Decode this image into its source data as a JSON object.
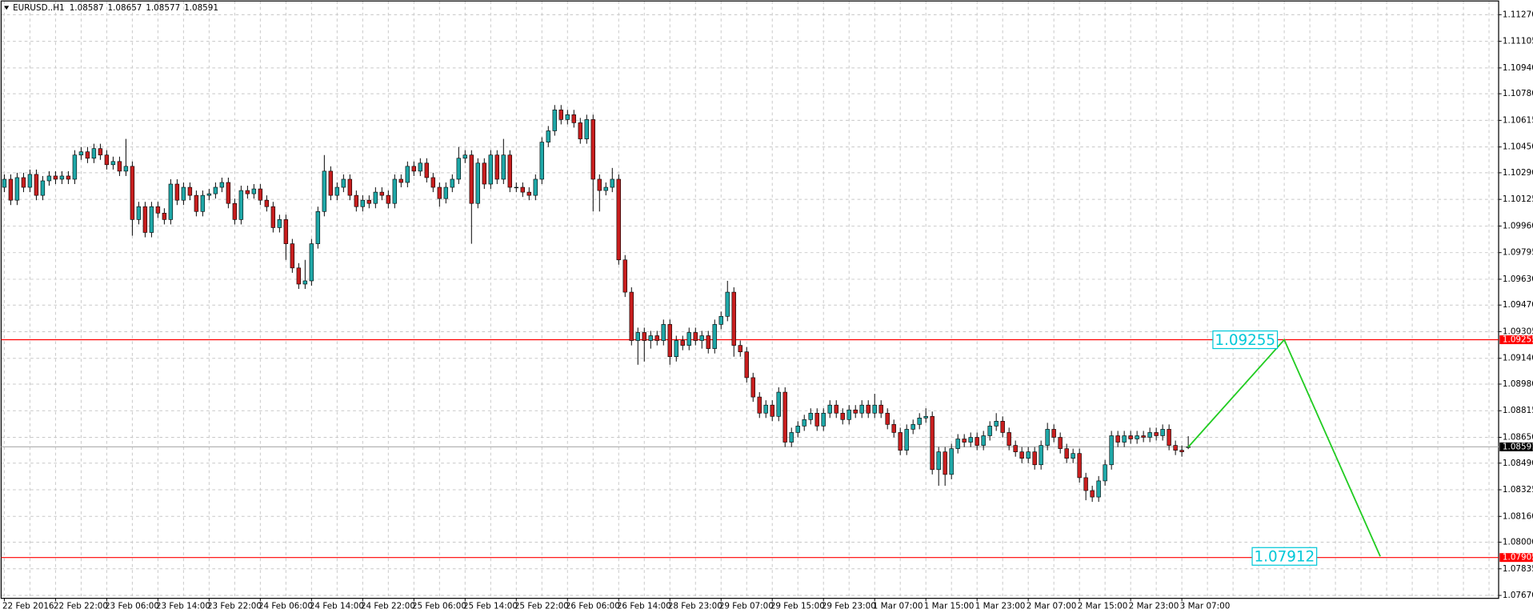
{
  "chart_data": {
    "type": "candlestick",
    "title": "EURUSD..H1",
    "up_color": "#1fa8a8",
    "down_color": "#c81e1e",
    "grid": true,
    "categories": [
      "22 Feb 2016",
      null,
      null,
      null,
      null,
      null,
      null,
      null,
      "22 Feb 22:00",
      null,
      null,
      null,
      null,
      null,
      null,
      null,
      "23 Feb 06:00",
      null,
      null,
      null,
      null,
      null,
      null,
      null,
      "23 Feb 14:00",
      null,
      null,
      null,
      null,
      null,
      null,
      null,
      "23 Feb 22:00",
      null,
      null,
      null,
      null,
      null,
      null,
      null,
      "24 Feb 06:00",
      null,
      null,
      null,
      null,
      null,
      null,
      null,
      "24 Feb 14:00",
      null,
      null,
      null,
      null,
      null,
      null,
      null,
      "24 Feb 22:00",
      null,
      null,
      null,
      null,
      null,
      null,
      null,
      "25 Feb 06:00",
      null,
      null,
      null,
      null,
      null,
      null,
      null,
      "25 Feb 14:00",
      null,
      null,
      null,
      null,
      null,
      null,
      null,
      "25 Feb 22:00",
      null,
      null,
      null,
      null,
      null,
      null,
      null,
      "26 Feb 06:00",
      null,
      null,
      null,
      null,
      null,
      null,
      null,
      "26 Feb 14:00",
      null,
      null,
      null,
      null,
      null,
      null,
      null,
      "28 Feb 23:00",
      null,
      null,
      null,
      null,
      null,
      null,
      null,
      "29 Feb 07:00",
      null,
      null,
      null,
      null,
      null,
      null,
      null,
      "29 Feb 15:00",
      null,
      null,
      null,
      null,
      null,
      null,
      null,
      "29 Feb 23:00",
      null,
      null,
      null,
      null,
      null,
      null,
      null,
      "1 Mar 07:00",
      null,
      null,
      null,
      null,
      null,
      null,
      null,
      "1 Mar 15:00",
      null,
      null,
      null,
      null,
      null,
      null,
      null,
      "1 Mar 23:00",
      null,
      null,
      null,
      null,
      null,
      null,
      null,
      "2 Mar 07:00",
      null,
      null,
      null,
      null,
      null,
      null,
      null,
      "2 Mar 15:00",
      null,
      null,
      null,
      null,
      null,
      null,
      null,
      "2 Mar 23:00",
      null,
      null,
      null,
      null,
      null,
      null,
      null,
      "3 Mar 07:00",
      null
    ],
    "open": [
      1.102,
      1.1025,
      1.1012,
      1.1026,
      1.102,
      1.1028,
      1.1015,
      1.1024,
      1.1027,
      1.1025,
      1.1027,
      1.1025,
      1.104,
      1.1042,
      1.1038,
      1.1044,
      1.104,
      1.1034,
      1.1036,
      1.103,
      1.1033,
      1.1,
      1.1008,
      1.0992,
      1.1008,
      1.1004,
      1.1,
      1.1022,
      1.1012,
      1.102,
      1.1015,
      1.1005,
      1.1015,
      1.1016,
      1.102,
      1.1023,
      1.101,
      1.1,
      1.1018,
      1.1016,
      1.1019,
      1.1012,
      1.1008,
      1.0995,
      1.1,
      1.0985,
      1.097,
      1.096,
      1.0962,
      1.0985,
      1.1005,
      1.103,
      1.1015,
      1.102,
      1.1025,
      1.1015,
      1.1008,
      1.1012,
      1.101,
      1.1017,
      1.1015,
      1.101,
      1.1025,
      1.1023,
      1.1033,
      1.103,
      1.1035,
      1.1026,
      1.102,
      1.1013,
      1.102,
      1.1025,
      1.1038,
      1.104,
      1.101,
      1.1035,
      1.1022,
      1.104,
      1.1025,
      1.104,
      1.102,
      1.102,
      1.1017,
      1.1015,
      1.1025,
      1.1048,
      1.1055,
      1.1068,
      1.1062,
      1.1065,
      1.106,
      1.105,
      1.1062,
      1.1025,
      1.1018,
      1.102,
      1.1025,
      1.0975,
      1.0955,
      1.0925,
      1.093,
      1.0925,
      1.0928,
      1.0925,
      1.0935,
      1.0915,
      1.0925,
      1.0922,
      1.093,
      1.0925,
      1.0928,
      1.092,
      1.0935,
      1.094,
      1.0955,
      1.0922,
      1.0918,
      1.0902,
      1.089,
      1.088,
      1.0885,
      1.0878,
      1.0893,
      1.0862,
      1.0868,
      1.0872,
      1.0876,
      1.088,
      1.0872,
      1.088,
      1.0885,
      1.088,
      1.0876,
      1.0882,
      1.088,
      1.0885,
      1.088,
      1.0885,
      1.088,
      1.0873,
      1.0868,
      1.0857,
      1.087,
      1.0873,
      1.0877,
      1.0878,
      1.0845,
      1.0856,
      1.0842,
      1.0858,
      1.0864,
      1.0862,
      1.0865,
      1.086,
      1.0866,
      1.0872,
      1.0875,
      1.0868,
      1.086,
      1.0856,
      1.0852,
      1.0856,
      1.0848,
      1.086,
      1.087,
      1.0865,
      1.0858,
      1.0852,
      1.0855,
      1.084,
      1.0832,
      1.0828,
      1.0838,
      1.0848,
      1.0866,
      1.0862,
      1.0866,
      1.0864,
      1.0866,
      1.0865,
      1.0868,
      1.0866,
      1.087,
      1.086,
      1.0857,
      1.08587
    ],
    "high": [
      1.1028,
      1.1028,
      1.1029,
      1.1029,
      1.1031,
      1.1031,
      1.1027,
      1.103,
      1.103,
      1.103,
      1.103,
      1.1043,
      1.1045,
      1.1045,
      1.1047,
      1.1047,
      1.1043,
      1.1039,
      1.1039,
      1.105,
      1.1036,
      1.1011,
      1.1011,
      1.1011,
      1.1011,
      1.1007,
      1.1025,
      1.1025,
      1.1023,
      1.1023,
      1.1018,
      1.1018,
      1.1019,
      1.1023,
      1.1026,
      1.1026,
      1.1013,
      1.1021,
      1.1021,
      1.1022,
      1.1022,
      1.1015,
      1.1011,
      1.1003,
      1.1003,
      1.0988,
      1.0973,
      1.0975,
      1.0988,
      1.1008,
      1.104,
      1.1033,
      1.1023,
      1.1028,
      1.1028,
      1.1018,
      1.1015,
      1.1015,
      1.102,
      1.102,
      1.1018,
      1.1028,
      1.1028,
      1.1036,
      1.1036,
      1.1038,
      1.1038,
      1.1029,
      1.1023,
      1.1023,
      1.1028,
      1.1045,
      1.1043,
      1.1043,
      1.1038,
      1.1038,
      1.1043,
      1.1043,
      1.105,
      1.1043,
      1.1023,
      1.1023,
      1.102,
      1.1028,
      1.1051,
      1.1058,
      1.1071,
      1.1071,
      1.1068,
      1.1068,
      1.1063,
      1.1065,
      1.1065,
      1.1028,
      1.1023,
      1.1032,
      1.1028,
      1.0978,
      1.0958,
      1.0933,
      1.0933,
      1.0931,
      1.0931,
      1.0938,
      1.0938,
      1.0928,
      1.0928,
      1.0933,
      1.0933,
      1.0931,
      1.0931,
      1.0938,
      1.0943,
      1.0962,
      1.0958,
      1.0925,
      1.0921,
      1.0905,
      1.0893,
      1.0888,
      1.0888,
      1.0896,
      1.0896,
      1.0871,
      1.0875,
      1.0879,
      1.0883,
      1.0883,
      1.0883,
      1.0888,
      1.0888,
      1.0883,
      1.0885,
      1.0885,
      1.0888,
      1.0888,
      1.0892,
      1.0888,
      1.0883,
      1.0876,
      1.0871,
      1.0873,
      1.0876,
      1.088,
      1.0883,
      1.0881,
      1.0859,
      1.0859,
      1.0861,
      1.0867,
      1.0867,
      1.0868,
      1.0868,
      1.0869,
      1.0875,
      1.088,
      1.0878,
      1.0871,
      1.0863,
      1.0859,
      1.0859,
      1.0859,
      1.0863,
      1.0874,
      1.0873,
      1.0868,
      1.0861,
      1.0858,
      1.0858,
      1.0843,
      1.0835,
      1.0841,
      1.0851,
      1.0869,
      1.0869,
      1.0869,
      1.0869,
      1.0869,
      1.0869,
      1.0871,
      1.0871,
      1.0873,
      1.0873,
      1.0863,
      1.086,
      1.08657
    ],
    "low": [
      1.1017,
      1.1009,
      1.1009,
      1.1017,
      1.1017,
      1.1012,
      1.1012,
      1.1021,
      1.1022,
      1.1022,
      1.1022,
      1.1022,
      1.1037,
      1.1035,
      1.1035,
      1.1037,
      1.1031,
      1.1031,
      1.1027,
      1.1027,
      1.099,
      1.0997,
      1.0989,
      1.0989,
      1.1001,
      1.0997,
      1.0997,
      1.1009,
      1.1009,
      1.1012,
      1.1002,
      1.1002,
      1.1012,
      1.1013,
      1.1017,
      1.1007,
      1.0997,
      1.0997,
      1.1013,
      1.1013,
      1.1009,
      1.1005,
      1.0992,
      1.0992,
      1.0975,
      1.0967,
      1.0957,
      1.0957,
      1.0959,
      1.0982,
      1.1002,
      1.1012,
      1.1012,
      1.1017,
      1.1012,
      1.1005,
      1.1005,
      1.1007,
      1.1007,
      1.1012,
      1.1007,
      1.1007,
      1.102,
      1.102,
      1.1027,
      1.1027,
      1.1023,
      1.1017,
      1.1008,
      1.101,
      1.1017,
      1.1022,
      1.1035,
      1.0985,
      1.1007,
      1.1019,
      1.1019,
      1.1022,
      1.1022,
      1.1017,
      1.1017,
      1.1014,
      1.1012,
      1.1012,
      1.1022,
      1.1045,
      1.1052,
      1.1059,
      1.1059,
      1.1057,
      1.1047,
      1.1047,
      1.1005,
      1.1005,
      1.1015,
      1.1017,
      1.0972,
      1.0952,
      1.0922,
      1.091,
      1.0912,
      1.092,
      1.0922,
      1.0922,
      1.091,
      1.0912,
      1.0919,
      1.0919,
      1.0922,
      1.092,
      1.0917,
      1.0917,
      1.0932,
      1.0937,
      1.0915,
      1.0915,
      1.0899,
      1.0887,
      1.0877,
      1.0877,
      1.0875,
      1.0875,
      1.0859,
      1.0859,
      1.0865,
      1.0869,
      1.0873,
      1.0869,
      1.0869,
      1.0877,
      1.0877,
      1.0873,
      1.0873,
      1.0877,
      1.0877,
      1.0877,
      1.0877,
      1.0877,
      1.087,
      1.0865,
      1.0854,
      1.0854,
      1.0867,
      1.087,
      1.0874,
      1.0842,
      1.0835,
      1.0835,
      1.0839,
      1.0855,
      1.0859,
      1.0859,
      1.0857,
      1.0857,
      1.0863,
      1.0869,
      1.0865,
      1.0857,
      1.0853,
      1.0849,
      1.0849,
      1.0845,
      1.0845,
      1.0857,
      1.0862,
      1.0855,
      1.0849,
      1.0849,
      1.0837,
      1.0826,
      1.0825,
      1.0825,
      1.0835,
      1.0845,
      1.0859,
      1.0859,
      1.0861,
      1.0861,
      1.0862,
      1.0862,
      1.0863,
      1.0863,
      1.0857,
      1.0854,
      1.0853,
      1.08577
    ],
    "close": [
      1.1025,
      1.1012,
      1.1026,
      1.102,
      1.1028,
      1.1015,
      1.1024,
      1.1027,
      1.1025,
      1.1027,
      1.1025,
      1.104,
      1.1042,
      1.1038,
      1.1044,
      1.104,
      1.1034,
      1.1036,
      1.103,
      1.1033,
      1.1,
      1.1008,
      1.0992,
      1.1008,
      1.1004,
      1.1,
      1.1022,
      1.1012,
      1.102,
      1.1015,
      1.1005,
      1.1015,
      1.1016,
      1.102,
      1.1023,
      1.101,
      1.1,
      1.1018,
      1.1016,
      1.1019,
      1.1012,
      1.1008,
      1.0995,
      1.1,
      1.0985,
      1.097,
      1.096,
      1.0962,
      1.0985,
      1.1005,
      1.103,
      1.1015,
      1.102,
      1.1025,
      1.1015,
      1.1008,
      1.1012,
      1.101,
      1.1017,
      1.1015,
      1.101,
      1.1025,
      1.1023,
      1.1033,
      1.103,
      1.1035,
      1.1026,
      1.102,
      1.1013,
      1.102,
      1.1025,
      1.1038,
      1.104,
      1.101,
      1.1035,
      1.1022,
      1.104,
      1.1025,
      1.104,
      1.102,
      1.102,
      1.1017,
      1.1015,
      1.1025,
      1.1048,
      1.1055,
      1.1068,
      1.1062,
      1.1065,
      1.106,
      1.105,
      1.1062,
      1.1025,
      1.1018,
      1.102,
      1.1025,
      1.0975,
      1.0955,
      1.0925,
      1.093,
      1.0925,
      1.0928,
      1.0925,
      1.0935,
      1.0915,
      1.0925,
      1.0922,
      1.093,
      1.0925,
      1.0928,
      1.092,
      1.0935,
      1.094,
      1.0955,
      1.0922,
      1.0918,
      1.0902,
      1.089,
      1.088,
      1.0885,
      1.0878,
      1.0893,
      1.0862,
      1.0868,
      1.0872,
      1.0876,
      1.088,
      1.0872,
      1.088,
      1.0885,
      1.088,
      1.0876,
      1.0882,
      1.088,
      1.0885,
      1.088,
      1.0885,
      1.088,
      1.0873,
      1.0868,
      1.0857,
      1.087,
      1.0873,
      1.0877,
      1.0878,
      1.0845,
      1.0856,
      1.0842,
      1.0858,
      1.0864,
      1.0862,
      1.0865,
      1.086,
      1.0866,
      1.0872,
      1.0875,
      1.0868,
      1.086,
      1.0856,
      1.0852,
      1.0856,
      1.0848,
      1.086,
      1.087,
      1.0865,
      1.0858,
      1.0852,
      1.0855,
      1.084,
      1.0832,
      1.0828,
      1.0838,
      1.0848,
      1.0866,
      1.0862,
      1.0866,
      1.0864,
      1.0866,
      1.0865,
      1.0868,
      1.0866,
      1.087,
      1.086,
      1.0857,
      1.0856,
      1.08591
    ],
    "xlim": [
      -0.5,
      233.5
    ],
    "ylim": [
      1.07652,
      1.11355
    ],
    "yticks": [
      {
        "value": 1.1127,
        "label": "1.11270"
      },
      1.11105,
      {
        "value": 1.1094,
        "label": "1.10940"
      },
      {
        "value": 1.1078,
        "label": "1.10780"
      },
      1.10615,
      {
        "value": 1.1045,
        "label": "1.10450"
      },
      {
        "value": 1.1029,
        "label": "1.10290"
      },
      1.10125,
      {
        "value": 1.0996,
        "label": "1.09960"
      },
      1.09795,
      {
        "value": 1.0963,
        "label": "1.09630"
      },
      {
        "value": 1.0947,
        "label": "1.09470"
      },
      1.09305,
      {
        "value": 1.0914,
        "label": "1.09140"
      },
      {
        "value": 1.0898,
        "label": "1.08980"
      },
      1.08815,
      {
        "value": 1.0865,
        "label": "1.08650"
      },
      {
        "value": 1.0849,
        "label": "1.08490"
      },
      1.08325,
      {
        "value": 1.0816,
        "label": "1.08160"
      },
      {
        "value": 1.08,
        "label": "1.08000"
      },
      1.07835,
      {
        "value": 1.0767,
        "label": "1.07670"
      }
    ],
    "current_price_color": "#b4b4b4",
    "hlines": [
      {
        "value": 1.09255,
        "color": "#ff0000"
      },
      {
        "value": 1.07905,
        "color": "#ff0000"
      }
    ],
    "projection": {
      "color": "#22cc22",
      "x": [
        185,
        200,
        215
      ],
      "values": [
        1.0859,
        1.09255,
        1.07912
      ]
    }
  }
}
